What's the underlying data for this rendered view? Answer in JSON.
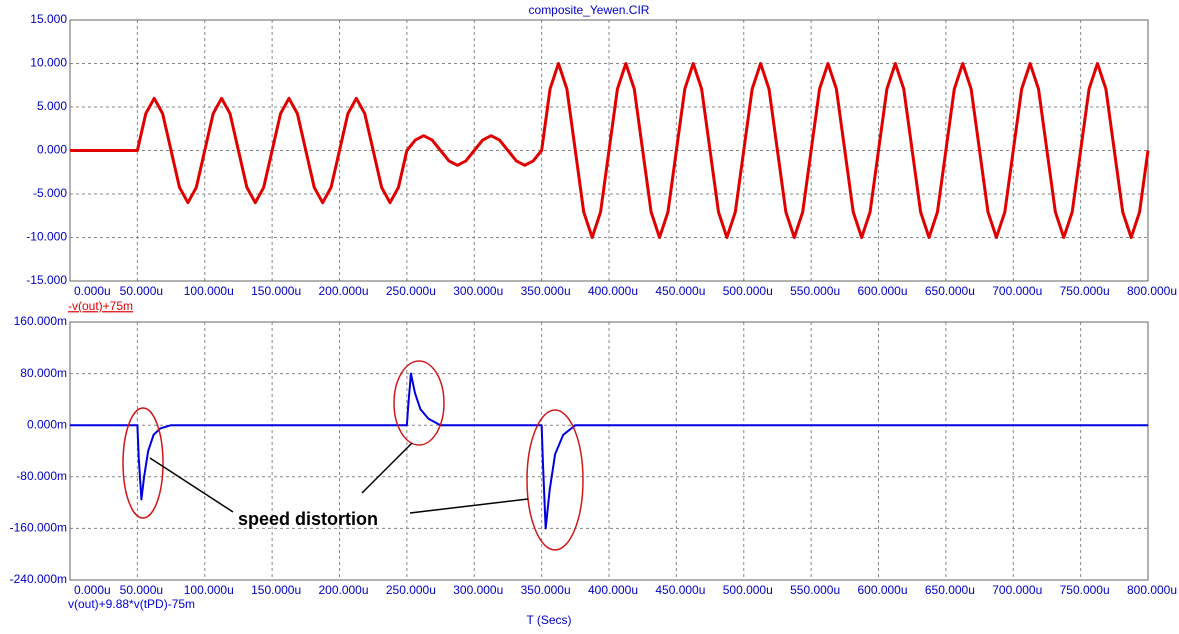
{
  "chart_data": [
    {
      "type": "line",
      "title": "composite_Yewen.CIR",
      "grid": true,
      "xlim": [
        0,
        800
      ],
      "ylim": [
        -15,
        15
      ],
      "xticks": [
        {
          "value": 0,
          "label": "0.000u"
        },
        {
          "value": 50,
          "label": "50.000u"
        },
        {
          "value": 100,
          "label": "100.000u"
        },
        {
          "value": 150,
          "label": "150.000u"
        },
        {
          "value": 200,
          "label": "200.000u"
        },
        {
          "value": 250,
          "label": "250.000u"
        },
        {
          "value": 300,
          "label": "300.000u"
        },
        {
          "value": 350,
          "label": "350.000u"
        },
        {
          "value": 400,
          "label": "400.000u"
        },
        {
          "value": 450,
          "label": "450.000u"
        },
        {
          "value": 500,
          "label": "500.000u"
        },
        {
          "value": 550,
          "label": "550.000u"
        },
        {
          "value": 600,
          "label": "600.000u"
        },
        {
          "value": 650,
          "label": "650.000u"
        },
        {
          "value": 700,
          "label": "700.000u"
        },
        {
          "value": 750,
          "label": "750.000u"
        },
        {
          "value": 800,
          "label": "800.000u"
        }
      ],
      "yticks": [
        {
          "value": 15,
          "label": "15.000"
        },
        {
          "value": 10,
          "label": "10.000"
        },
        {
          "value": 5,
          "label": "5.000"
        },
        {
          "value": 0,
          "label": "0.000"
        },
        {
          "value": -5,
          "label": "-5.000"
        },
        {
          "value": -10,
          "label": "-10.000"
        },
        {
          "value": -15,
          "label": "-15.000"
        }
      ],
      "x": [
        0,
        50,
        56.25,
        62.5,
        68.75,
        75,
        81.25,
        87.5,
        93.75,
        100,
        106.25,
        112.5,
        118.75,
        125,
        131.25,
        137.5,
        143.75,
        150,
        156.25,
        162.5,
        168.75,
        175,
        181.25,
        187.5,
        193.75,
        200,
        206.25,
        212.5,
        218.75,
        225,
        231.25,
        237.5,
        243.75,
        250,
        256.25,
        262.5,
        268.75,
        275,
        281.25,
        287.5,
        293.75,
        300,
        306.25,
        312.5,
        318.75,
        325,
        331.25,
        337.5,
        343.75,
        350,
        356.25,
        362.5,
        368.75,
        375,
        381.25,
        387.5,
        393.75,
        400,
        406.25,
        412.5,
        418.75,
        425,
        431.25,
        437.5,
        443.75,
        450,
        456.25,
        462.5,
        468.75,
        475,
        481.25,
        487.5,
        493.75,
        500,
        506.25,
        512.5,
        518.75,
        525,
        531.25,
        537.5,
        543.75,
        550,
        556.25,
        562.5,
        568.75,
        575,
        581.25,
        587.5,
        593.75,
        600,
        606.25,
        612.5,
        618.75,
        625,
        631.25,
        637.5,
        643.75,
        650,
        656.25,
        662.5,
        668.75,
        675,
        681.25,
        687.5,
        693.75,
        700,
        706.25,
        712.5,
        718.75,
        725,
        731.25,
        737.5,
        743.75,
        750,
        756.25,
        762.5,
        768.75,
        775,
        781.25,
        787.5,
        793.75,
        800
      ],
      "series": [
        {
          "name": "-v(out)+75m",
          "color": "#e00000",
          "values": [
            0,
            0,
            4.24,
            6,
            4.24,
            0,
            -4.24,
            -6,
            -4.24,
            0,
            4.24,
            6,
            4.24,
            0,
            -4.24,
            -6,
            -4.24,
            0,
            4.24,
            6,
            4.24,
            0,
            -4.24,
            -6,
            -4.24,
            0,
            4.24,
            6,
            4.24,
            0,
            -4.24,
            -6,
            -4.24,
            0,
            1.2,
            1.7,
            1.2,
            0,
            -1.2,
            -1.7,
            -1.2,
            0,
            1.2,
            1.7,
            1.2,
            0,
            -1.2,
            -1.7,
            -1.2,
            0,
            7.07,
            10,
            7.07,
            0,
            -7.07,
            -10,
            -7.07,
            0,
            7.07,
            10,
            7.07,
            0,
            -7.07,
            -10,
            -7.07,
            0,
            7.07,
            10,
            7.07,
            0,
            -7.07,
            -10,
            -7.07,
            0,
            7.07,
            10,
            7.07,
            0,
            -7.07,
            -10,
            -7.07,
            0,
            7.07,
            10,
            7.07,
            0,
            -7.07,
            -10,
            -7.07,
            0,
            7.07,
            10,
            7.07,
            0,
            -7.07,
            -10,
            -7.07,
            0,
            7.07,
            10,
            7.07,
            0,
            -7.07,
            -10,
            -7.07,
            0,
            7.07,
            10,
            7.07,
            0,
            -7.07,
            -10,
            -7.07,
            0,
            7.07,
            10,
            7.07,
            0,
            -7.07,
            -10,
            -7.07,
            0
          ]
        }
      ]
    },
    {
      "type": "line",
      "xlabel": "T (Secs)",
      "grid": true,
      "xlim": [
        0,
        800
      ],
      "ylim": [
        -240,
        160
      ],
      "xticks": [
        {
          "value": 0,
          "label": "0.000u"
        },
        {
          "value": 50,
          "label": "50.000u"
        },
        {
          "value": 100,
          "label": "100.000u"
        },
        {
          "value": 150,
          "label": "150.000u"
        },
        {
          "value": 200,
          "label": "200.000u"
        },
        {
          "value": 250,
          "label": "250.000u"
        },
        {
          "value": 300,
          "label": "300.000u"
        },
        {
          "value": 350,
          "label": "350.000u"
        },
        {
          "value": 400,
          "label": "400.000u"
        },
        {
          "value": 450,
          "label": "450.000u"
        },
        {
          "value": 500,
          "label": "500.000u"
        },
        {
          "value": 550,
          "label": "550.000u"
        },
        {
          "value": 600,
          "label": "600.000u"
        },
        {
          "value": 650,
          "label": "650.000u"
        },
        {
          "value": 700,
          "label": "700.000u"
        },
        {
          "value": 750,
          "label": "750.000u"
        },
        {
          "value": 800,
          "label": "800.000u"
        }
      ],
      "yticks": [
        {
          "value": 160,
          "label": "160.000m"
        },
        {
          "value": 80,
          "label": "80.000m"
        },
        {
          "value": 0,
          "label": "0.000m"
        },
        {
          "value": -80,
          "label": "-80.000m"
        },
        {
          "value": -160,
          "label": "-160.000m"
        },
        {
          "value": -240,
          "label": "-240.000m"
        }
      ],
      "x": [
        0,
        50,
        51,
        53,
        55,
        58,
        62,
        67,
        75,
        250,
        251,
        253,
        256,
        260,
        266,
        275,
        350,
        351,
        353,
        356,
        360,
        366,
        375,
        800
      ],
      "series": [
        {
          "name": "v(out)+9.88*v(tPD)-75m",
          "color": "#0000e0",
          "values": [
            0,
            0,
            -50,
            -115,
            -80,
            -40,
            -15,
            -5,
            0,
            0,
            30,
            80,
            50,
            25,
            10,
            0,
            0,
            -60,
            -160,
            -100,
            -45,
            -15,
            0,
            0
          ]
        }
      ],
      "annotations": [
        "speed distortion"
      ]
    }
  ]
}
